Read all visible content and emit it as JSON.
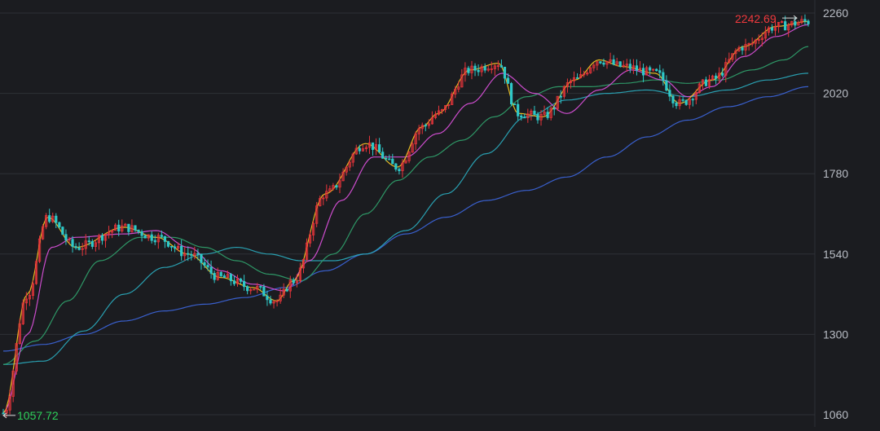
{
  "chart_data": {
    "type": "candlestick",
    "title": "",
    "xlabel": "",
    "ylabel": "",
    "ylim": [
      1060,
      2260
    ],
    "y_ticks": [
      "2260",
      "2020",
      "1780",
      "1540",
      "1300",
      "1060"
    ],
    "max_label": "2242.69",
    "min_label": "1057.72",
    "grid": true,
    "legend": "none",
    "colors": {
      "background": "#1b1c20",
      "grid": "#2e3036",
      "tick_text": "#b8bcc4",
      "up": "#e8353b",
      "down": "#2ec8c8",
      "max_label": "#f0393d",
      "min_label": "#2dd05a",
      "ma5": "#f5f5f5",
      "ma10": "#f2c322",
      "ma20": "#d64fd6",
      "ma60": "#2f9e6a",
      "ma120": "#2aa7b8",
      "ma250": "#3b63d6"
    },
    "series": [
      {
        "name": "",
        "color": "ma10",
        "x": [
          0,
          0.03,
          0.055,
          0.09,
          0.15,
          0.19,
          0.23,
          0.27,
          0.31,
          0.34,
          0.36,
          0.4,
          0.45,
          0.49,
          0.52,
          0.54,
          0.58,
          0.615,
          0.64,
          0.67,
          0.71,
          0.74,
          0.77,
          0.81,
          0.84,
          0.88,
          0.92,
          0.96,
          1
        ],
        "y": [
          1065,
          1420,
          1650,
          1560,
          1620,
          1590,
          1540,
          1470,
          1440,
          1400,
          1460,
          1720,
          1870,
          1800,
          1920,
          1960,
          2090,
          2110,
          1960,
          1950,
          2060,
          2120,
          2100,
          2080,
          1990,
          2060,
          2160,
          2220,
          2235
        ]
      },
      {
        "name": "",
        "color": "ma20",
        "x": [
          0,
          0.03,
          0.06,
          0.09,
          0.15,
          0.19,
          0.23,
          0.27,
          0.31,
          0.35,
          0.38,
          0.42,
          0.46,
          0.5,
          0.54,
          0.58,
          0.62,
          0.66,
          0.7,
          0.74,
          0.78,
          0.82,
          0.85,
          0.88,
          0.92,
          0.96,
          1
        ],
        "y": [
          1065,
          1300,
          1560,
          1590,
          1600,
          1610,
          1560,
          1490,
          1450,
          1430,
          1520,
          1700,
          1830,
          1830,
          1900,
          1990,
          2080,
          2020,
          1960,
          2030,
          2090,
          2060,
          2010,
          2040,
          2130,
          2190,
          2225
        ]
      },
      {
        "name": "",
        "color": "ma60",
        "x": [
          0,
          0.04,
          0.08,
          0.12,
          0.17,
          0.21,
          0.25,
          0.29,
          0.33,
          0.37,
          0.41,
          0.45,
          0.49,
          0.53,
          0.57,
          0.61,
          0.65,
          0.69,
          0.73,
          0.77,
          0.81,
          0.85,
          0.89,
          0.93,
          0.97,
          1
        ],
        "y": [
          1210,
          1280,
          1400,
          1520,
          1590,
          1590,
          1560,
          1520,
          1480,
          1460,
          1540,
          1660,
          1760,
          1830,
          1880,
          1950,
          2010,
          2040,
          2040,
          2050,
          2060,
          2050,
          2060,
          2090,
          2120,
          2160
        ]
      },
      {
        "name": "",
        "color": "ma120",
        "x": [
          0,
          0.05,
          0.1,
          0.15,
          0.2,
          0.25,
          0.29,
          0.33,
          0.37,
          0.41,
          0.45,
          0.5,
          0.55,
          0.6,
          0.65,
          0.7,
          0.75,
          0.8,
          0.85,
          0.9,
          0.95,
          1
        ],
        "y": [
          1210,
          1220,
          1310,
          1420,
          1500,
          1540,
          1560,
          1540,
          1520,
          1520,
          1540,
          1610,
          1720,
          1840,
          1950,
          2000,
          2020,
          2030,
          2010,
          2030,
          2060,
          2080
        ]
      },
      {
        "name": "",
        "color": "ma250",
        "x": [
          0,
          0.05,
          0.1,
          0.15,
          0.2,
          0.25,
          0.3,
          0.35,
          0.4,
          0.45,
          0.5,
          0.55,
          0.6,
          0.65,
          0.7,
          0.75,
          0.8,
          0.85,
          0.9,
          0.95,
          1
        ],
        "y": [
          1250,
          1270,
          1300,
          1340,
          1370,
          1390,
          1410,
          1440,
          1490,
          1540,
          1600,
          1650,
          1700,
          1730,
          1770,
          1830,
          1890,
          1940,
          1980,
          2010,
          2040
        ]
      }
    ]
  }
}
